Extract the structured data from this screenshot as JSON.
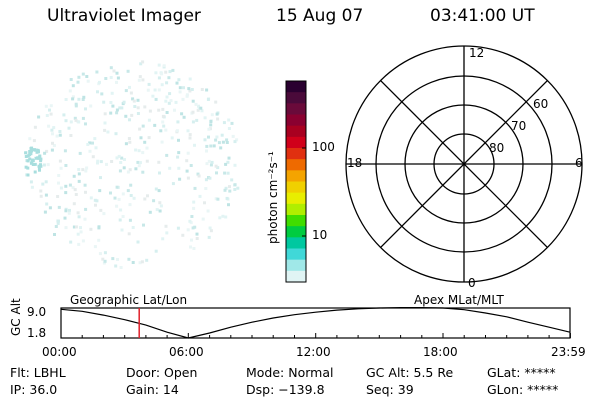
{
  "header": {
    "instrument": "Ultraviolet Imager",
    "date": "15 Aug 07",
    "time": "03:41:00 UT"
  },
  "colorbar": {
    "label": "photon cm⁻²s⁻¹",
    "ticks": [
      "100",
      "10"
    ],
    "colors": [
      "#2a0030",
      "#4a0a3a",
      "#6a0a3a",
      "#8a0030",
      "#a80020",
      "#d0001a",
      "#e03010",
      "#ee6a00",
      "#f4a400",
      "#f0d000",
      "#e8ee00",
      "#b0ee00",
      "#40dd00",
      "#00cc40",
      "#00c8a0",
      "#40d8d8",
      "#a0e8e8",
      "#e0f4f4"
    ]
  },
  "polar": {
    "mlt_labels": {
      "top": "12",
      "left": "18",
      "right": "6",
      "bottom": "0"
    },
    "lat_labels": [
      "60",
      "70",
      "80"
    ]
  },
  "timeline": {
    "left_title": "Geographic Lat/Lon",
    "right_title": "Apex MLat/MLT",
    "ylabel": "GC Alt",
    "yticks": [
      "9.0",
      "1.8"
    ],
    "xticks": [
      "00:00",
      "06:00",
      "12:00",
      "18:00",
      "23:59"
    ]
  },
  "chart_data": {
    "type": "line",
    "title": "",
    "xlabel": "",
    "ylabel": "GC Alt",
    "x": [
      "00:00",
      "01:00",
      "02:00",
      "03:00",
      "04:00",
      "05:00",
      "06:00",
      "07:00",
      "08:00",
      "09:00",
      "10:00",
      "11:00",
      "12:00",
      "13:00",
      "14:00",
      "15:00",
      "16:00",
      "17:00",
      "18:00",
      "19:00",
      "20:00",
      "21:00",
      "22:00",
      "23:00",
      "23:59"
    ],
    "series": [
      {
        "values": [
          8.7,
          8.2,
          7.3,
          6.2,
          4.9,
          3.2,
          1.8,
          3.0,
          4.4,
          5.6,
          6.6,
          7.4,
          8.0,
          8.5,
          8.8,
          9.0,
          9.1,
          9.1,
          9.0,
          8.6,
          7.8,
          6.9,
          5.6,
          4.4,
          3.2
        ]
      }
    ],
    "ylim": [
      1.8,
      9.0
    ],
    "marker_time": "03:41"
  },
  "status": {
    "row1": {
      "filter": "Flt: LBHL",
      "door": "Door: Open",
      "mode": "Mode: Normal",
      "gc_alt": "GC Alt: 5.5 Re",
      "glat": "GLat: *****"
    },
    "row2": {
      "ip": "IP: 36.0",
      "gain": "Gain: 14",
      "dsp": "Dsp: −139.8",
      "seq": "Seq: 39",
      "glon": "GLon: *****"
    }
  }
}
